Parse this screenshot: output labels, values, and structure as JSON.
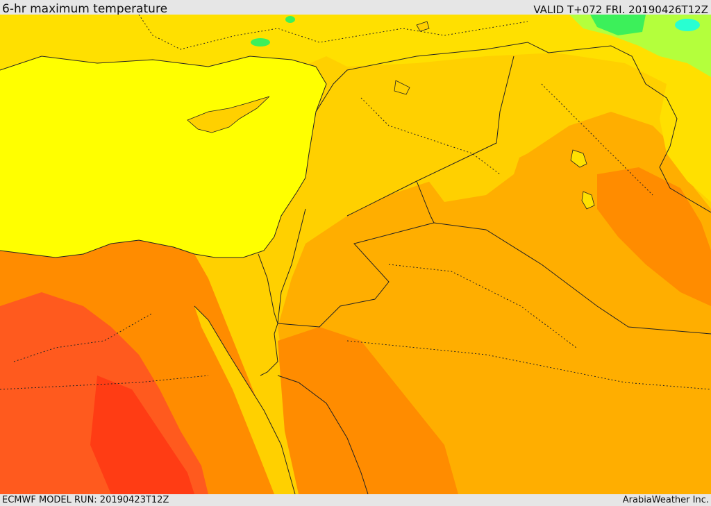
{
  "header": {
    "title": "6-hr maximum temperature",
    "valid": "VALID T+072 FRI. 20190426T12Z"
  },
  "footer": {
    "model_run": "ECMWF MODEL RUN: 20190423T12Z",
    "credit": "ArabiaWeather Inc."
  },
  "palette": {
    "sea_yellow": "#ffff00",
    "light_yellow": "#ffe000",
    "gold": "#ffd000",
    "orange": "#ffae00",
    "dark_orange": "#ff8c00",
    "red_orange": "#ff5a1e",
    "red": "#ff3c14",
    "light_green": "#b4ff3c",
    "green": "#3cf05a",
    "cyan": "#28ffd2"
  }
}
